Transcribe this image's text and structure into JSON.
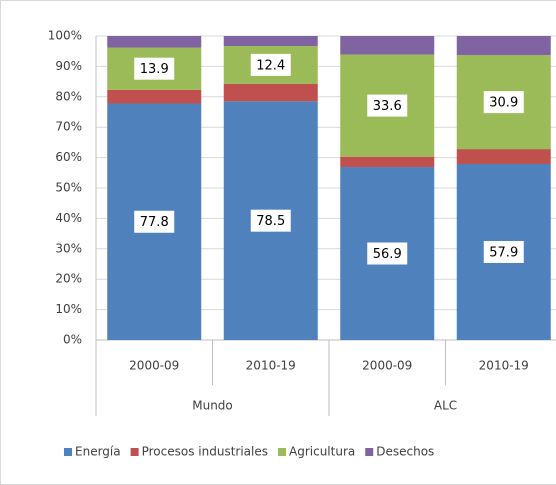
{
  "chart_data": {
    "type": "stacked_bar",
    "groups": [
      {
        "name": "Mundo",
        "categories": [
          "2000-09",
          "2010-19"
        ]
      },
      {
        "name": "ALC",
        "categories": [
          "2000-09",
          "2010-19"
        ]
      }
    ],
    "series": [
      {
        "name": "Energía",
        "color": "#4f81bd",
        "values": [
          77.8,
          78.5,
          56.9,
          57.9
        ],
        "data_labels": true
      },
      {
        "name": "Procesos industriales",
        "color": "#c0504d",
        "values": [
          4.5,
          5.8,
          3.4,
          4.9
        ],
        "data_labels": false
      },
      {
        "name": "Agricultura",
        "color": "#9bbb59",
        "values": [
          13.9,
          12.4,
          33.6,
          30.9
        ],
        "data_labels": true
      },
      {
        "name": "Desechos",
        "color": "#8064a2",
        "values": [
          3.8,
          3.3,
          6.1,
          6.3
        ],
        "data_labels": false
      }
    ],
    "ylim": [
      0,
      100
    ],
    "yticks": [
      {
        "value": 0,
        "label": "0%"
      },
      {
        "value": 10,
        "label": "10%"
      },
      {
        "value": 20,
        "label": "20%"
      },
      {
        "value": 30,
        "label": "30%"
      },
      {
        "value": 40,
        "label": "40%"
      },
      {
        "value": 50,
        "label": "50%"
      },
      {
        "value": 60,
        "label": "60%"
      },
      {
        "value": 70,
        "label": "70%"
      },
      {
        "value": 80,
        "label": "80%"
      },
      {
        "value": 90,
        "label": "90%"
      },
      {
        "value": 100,
        "label": "100%"
      }
    ],
    "grid": true,
    "legend": "bottom"
  }
}
